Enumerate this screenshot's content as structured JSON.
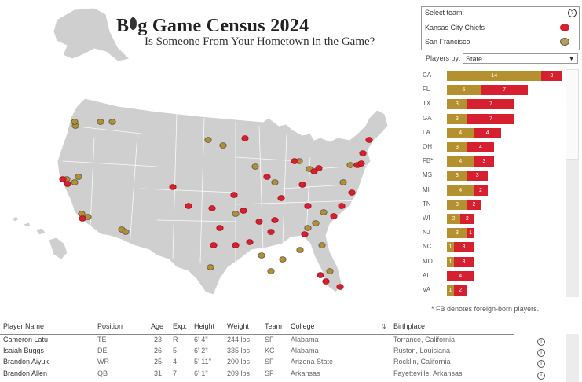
{
  "title": {
    "part1": "B",
    "part2": "g Game Census 2024",
    "subtitle": "Is Someone From Your Hometown in the Game?"
  },
  "team_selector": {
    "label": "Select team:",
    "help": "?",
    "teams": [
      {
        "name": "Kansas City Chiefs",
        "icon": "kc-helmet-icon"
      },
      {
        "name": "San Francisco",
        "icon": "football-icon"
      }
    ]
  },
  "players_by": {
    "label": "Players by:",
    "value": "State"
  },
  "colors": {
    "sf": "#b4902f",
    "kc": "#d6202f",
    "map_fill": "#cfcfcf",
    "map_stroke": "#ffffff"
  },
  "chart_data": {
    "type": "bar",
    "stacked": true,
    "orientation": "horizontal",
    "categories": [
      "CA",
      "FL",
      "TX",
      "GA",
      "LA",
      "OH",
      "FB*",
      "MS",
      "MI",
      "TN",
      "WI",
      "NJ",
      "NC",
      "MO",
      "AL",
      "VA"
    ],
    "series": [
      {
        "name": "San Francisco",
        "values": [
          14,
          5,
          3,
          3,
          4,
          3,
          4,
          3,
          4,
          3,
          2,
          3,
          1,
          1,
          0,
          1
        ]
      },
      {
        "name": "Kansas City Chiefs",
        "values": [
          3,
          7,
          7,
          7,
          4,
          4,
          3,
          3,
          2,
          2,
          2,
          1,
          3,
          3,
          4,
          2
        ]
      }
    ]
  },
  "fb_note": "* FB denotes foreign-born players.",
  "table": {
    "headers": {
      "name": "Player Name",
      "position": "Position",
      "age": "Age",
      "exp": "Exp.",
      "height": "Height",
      "weight": "Weight",
      "team": "Team",
      "college": "College",
      "birthplace": "Birthplace"
    },
    "sort_icon": "sort-icon",
    "rows": [
      {
        "name": "Cameron Latu",
        "position": "TE",
        "age": "23",
        "exp": "R",
        "height": "6' 4''",
        "weight": "244 lbs",
        "team": "SF",
        "college": "Alabama",
        "birthplace": "Torrance, California"
      },
      {
        "name": "Isaiah Buggs",
        "position": "DE",
        "age": "26",
        "exp": "5",
        "height": "6' 2''",
        "weight": "335 lbs",
        "team": "KC",
        "college": "Alabama",
        "birthplace": "Ruston, Louisiana"
      },
      {
        "name": "Brandon Aiyuk",
        "position": "WR",
        "age": "25",
        "exp": "4",
        "height": "5' 11''",
        "weight": "200 lbs",
        "team": "SF",
        "college": "Arizona State",
        "birthplace": "Rocklin, California"
      },
      {
        "name": "Brandon Allen",
        "position": "QB",
        "age": "31",
        "exp": "7",
        "height": "6' 1''",
        "weight": "209 lbs",
        "team": "SF",
        "college": "Arkansas",
        "birthplace": "Fayetteville, Arkansas"
      }
    ]
  }
}
